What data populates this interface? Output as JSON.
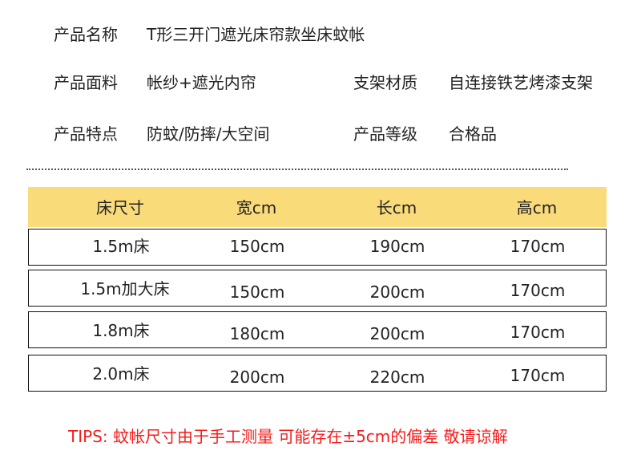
{
  "info": {
    "name_label": "产品名称",
    "name_value": "T形三开门遮光床帘款坐床蚊帐",
    "fabric_label": "产品面料",
    "fabric_value": "帐纱+遮光内帘",
    "frame_label": "支架材质",
    "frame_value": "自连接铁艺烤漆支架",
    "feature_label": "产品特点",
    "feature_value": "防蚊/防摔/大空间",
    "grade_label": "产品等级",
    "grade_value": "合格品"
  },
  "table": {
    "header_color": "#fadb7a",
    "columns": [
      "床尺寸",
      "宽cm",
      "长cm",
      "高cm"
    ],
    "rows": [
      [
        "1.5m床",
        "150cm",
        "190cm",
        "170cm"
      ],
      [
        "1.5m加大床",
        "150cm",
        "200cm",
        "170cm"
      ],
      [
        "1.8m床",
        "180cm",
        "200cm",
        "170cm"
      ],
      [
        "2.0m床",
        "200cm",
        "220cm",
        "170cm"
      ]
    ]
  },
  "tips": {
    "text": "TIPS:  蚊帐尺寸由于手工测量 可能存在±5cm的偏差 敬请谅解",
    "color": "#f51c1c"
  }
}
